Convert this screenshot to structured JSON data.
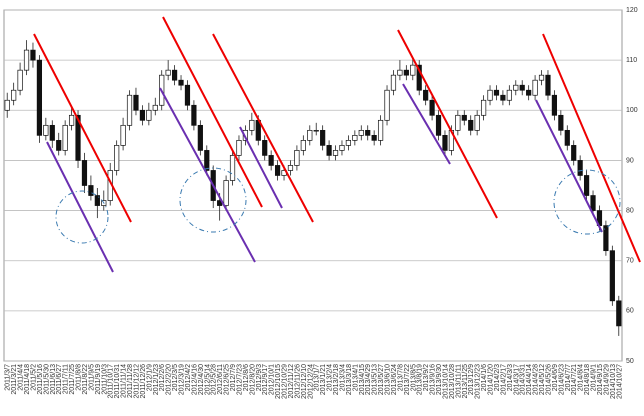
{
  "chart_data": {
    "type": "candlestick",
    "categories": [
      "2011/3/7",
      "2011/3/21",
      "2011/4/4",
      "2011/4/18",
      "2011/5/2",
      "2011/5/16",
      "2011/5/30",
      "2011/6/13",
      "2011/6/27",
      "2011/7/11",
      "2011/7/25",
      "2011/8/8",
      "2011/8/22",
      "2011/9/5",
      "2011/9/19",
      "2011/10/3",
      "2011/10/17",
      "2011/10/31",
      "2011/11/14",
      "2011/11/28",
      "2011/12/12",
      "2011/12/26",
      "2012/1/9",
      "2012/1/23",
      "2012/2/6",
      "2012/2/20",
      "2012/3/5",
      "2012/3/19",
      "2012/4/2",
      "2012/4/16",
      "2012/4/30",
      "2012/5/14",
      "2012/5/28",
      "2012/6/11",
      "2012/6/25",
      "2012/7/9",
      "2012/7/23",
      "2012/8/6",
      "2012/8/20",
      "2012/9/3",
      "2012/9/17",
      "2012/10/1",
      "2012/10/15",
      "2012/10/29",
      "2012/11/12",
      "2012/11/26",
      "2012/12/10",
      "2012/12/24",
      "2013/1/7",
      "2013/1/21",
      "2013/2/4",
      "2013/2/18",
      "2013/3/4",
      "2013/3/18",
      "2013/4/1",
      "2013/4/15",
      "2013/4/29",
      "2013/5/13",
      "2013/5/27",
      "2013/6/10",
      "2013/6/24",
      "2013/7/8",
      "2013/7/22",
      "2013/8/5",
      "2013/8/19",
      "2013/9/2",
      "2013/9/16",
      "2013/9/30",
      "2013/10/14",
      "2013/10/28",
      "2013/11/11",
      "2013/11/25",
      "2013/12/9",
      "2013/12/23",
      "2014/1/6",
      "2014/1/20",
      "2014/2/3",
      "2014/2/17",
      "2014/3/3",
      "2014/3/17",
      "2014/3/31",
      "2014/4/14",
      "2014/4/28",
      "2014/5/12",
      "2014/5/26",
      "2014/6/9",
      "2014/6/23",
      "2014/7/7",
      "2014/7/21",
      "2014/8/4",
      "2014/8/18",
      "2014/9/1",
      "2014/9/15",
      "2014/9/29",
      "2014/10/13",
      "2014/10/27"
    ],
    "open": [
      100,
      102,
      104,
      108,
      112,
      110,
      95,
      97,
      94,
      92,
      97,
      99,
      90,
      85,
      83,
      81,
      82,
      88,
      93,
      97,
      103,
      100,
      98,
      100,
      101,
      107,
      108,
      106,
      105,
      101,
      97,
      92,
      88,
      82,
      81,
      86,
      91,
      94,
      96,
      98,
      94,
      91,
      89,
      87,
      88,
      89,
      92,
      94,
      96,
      96,
      93,
      91,
      92,
      93,
      94,
      95,
      96,
      95,
      94,
      98,
      104,
      107,
      108,
      107,
      109,
      104,
      102,
      99,
      95,
      92,
      96,
      99,
      98,
      96,
      99,
      102,
      104,
      103,
      102,
      104,
      105,
      104,
      103,
      106,
      107,
      103,
      99,
      96,
      93,
      90,
      87,
      83,
      80,
      77,
      72,
      62
    ],
    "high": [
      103.5,
      105.5,
      109.5,
      114,
      113.5,
      111,
      98.5,
      98,
      95.5,
      98,
      100.5,
      100,
      91.5,
      87,
      84.5,
      84,
      89.5,
      94,
      98.5,
      104,
      104.5,
      101,
      101.5,
      102.5,
      108,
      110,
      109,
      107,
      106,
      102,
      98,
      93,
      89,
      83.5,
      87,
      92,
      95,
      97,
      99.5,
      99,
      95,
      92,
      90,
      89,
      90,
      93,
      95,
      97,
      97.5,
      97,
      94,
      93,
      94,
      95,
      96,
      97,
      97,
      96,
      99,
      105,
      108,
      110,
      109,
      110.5,
      110,
      105,
      103,
      100,
      96,
      97,
      100,
      100,
      99,
      100,
      103,
      105,
      105,
      104,
      105,
      106,
      106,
      105,
      107,
      108,
      108,
      104,
      100,
      97,
      94,
      91,
      88,
      84,
      81,
      78,
      73,
      63
    ],
    "low": [
      98.5,
      101,
      103,
      107,
      108.5,
      93.5,
      94,
      92.5,
      91,
      91,
      96,
      88.5,
      83.5,
      82,
      78.5,
      80,
      81,
      87,
      92,
      96,
      99,
      97,
      97,
      99,
      100,
      106,
      105,
      104,
      100,
      96,
      91,
      87,
      80.5,
      78,
      80,
      85,
      90,
      93,
      95,
      93,
      90,
      88,
      86,
      86,
      87,
      88,
      91,
      93,
      95,
      92,
      90,
      90,
      91,
      92,
      93,
      94,
      94,
      93,
      93,
      97,
      103,
      106,
      106,
      106,
      103,
      101,
      98,
      94,
      91,
      91,
      95,
      97,
      95,
      95,
      98,
      101,
      102,
      101,
      101,
      103,
      103,
      102,
      102,
      105,
      102,
      98,
      95,
      92,
      89,
      86,
      82,
      79,
      76,
      71,
      61,
      55
    ],
    "close": [
      102,
      104,
      108,
      112,
      110,
      95,
      97,
      94,
      92,
      97,
      99,
      90,
      85,
      83,
      81,
      82,
      88,
      93,
      97,
      103,
      100,
      98,
      100,
      101,
      107,
      108,
      106,
      105,
      101,
      97,
      92,
      88,
      82,
      81,
      86,
      91,
      94,
      96,
      98,
      94,
      91,
      89,
      87,
      88,
      89,
      92,
      94,
      96,
      96,
      93,
      91,
      92,
      93,
      94,
      95,
      96,
      95,
      94,
      98,
      104,
      107,
      108,
      107,
      109,
      104,
      102,
      99,
      95,
      92,
      96,
      99,
      98,
      96,
      99,
      102,
      104,
      103,
      102,
      104,
      105,
      104,
      103,
      106,
      107,
      103,
      99,
      96,
      93,
      90,
      87,
      83,
      80,
      77,
      72,
      62,
      57
    ],
    "ylim": [
      50,
      120
    ],
    "yticks": [
      50,
      60,
      70,
      80,
      90,
      100,
      110,
      120
    ],
    "grid": true
  }
}
